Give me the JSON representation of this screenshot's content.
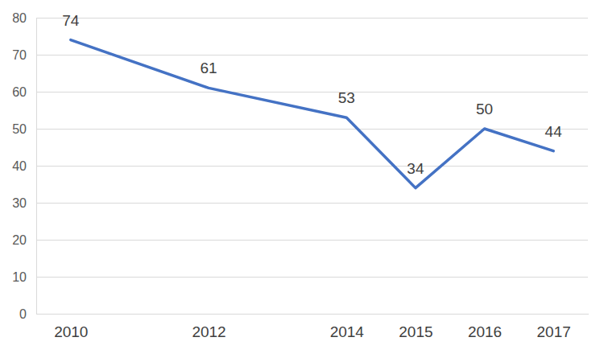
{
  "chart_data": {
    "type": "line",
    "x": [
      2010,
      2012,
      2014,
      2015,
      2016,
      2017
    ],
    "values": [
      74,
      61,
      53,
      34,
      50,
      44
    ],
    "color": "#4472c4",
    "xlim": [
      2009.5,
      2017.5
    ],
    "xticks": [
      2010,
      2012,
      2014,
      2015,
      2016,
      2017
    ],
    "ylim": [
      0,
      80
    ],
    "yticks": [
      0,
      10,
      20,
      30,
      40,
      50,
      60,
      70,
      80
    ],
    "grid": true,
    "data_labels": true
  }
}
